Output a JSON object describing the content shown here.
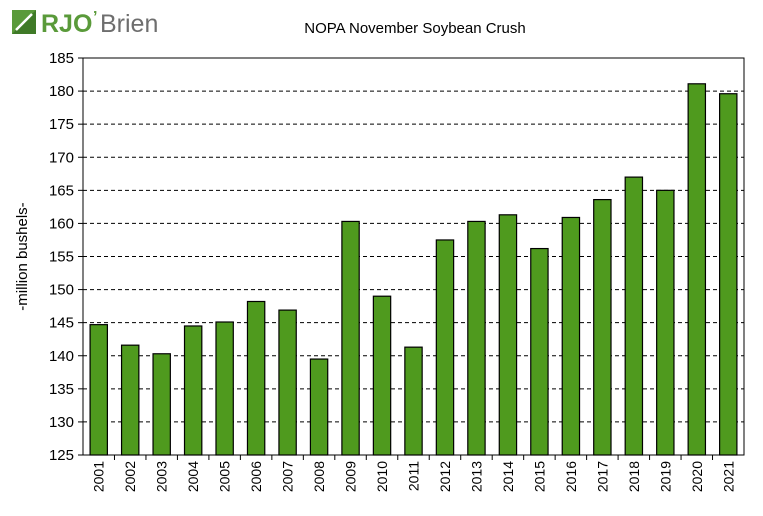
{
  "brand": {
    "logo_text": "RJO",
    "logo_suffix": "Brien",
    "colors": {
      "green": "#5a9a3a",
      "gray": "#6e6e6e"
    }
  },
  "chart_data": {
    "type": "bar",
    "title": "NOPA November Soybean Crush",
    "xlabel": "",
    "ylabel": "-million bushels-",
    "ylim": [
      125,
      185
    ],
    "ytick_step": 5,
    "grid": "horizontal-dashed",
    "bar_color": "#4f9a1e",
    "categories": [
      "2001",
      "2002",
      "2003",
      "2004",
      "2005",
      "2006",
      "2007",
      "2008",
      "2009",
      "2010",
      "2011",
      "2012",
      "2013",
      "2014",
      "2015",
      "2016",
      "2017",
      "2018",
      "2019",
      "2020",
      "2021"
    ],
    "values": [
      144.7,
      141.6,
      140.3,
      144.5,
      145.1,
      148.2,
      146.9,
      139.5,
      160.3,
      149.0,
      141.3,
      157.5,
      160.3,
      161.3,
      156.2,
      160.9,
      163.6,
      167.0,
      165.0,
      181.1,
      179.6
    ]
  }
}
